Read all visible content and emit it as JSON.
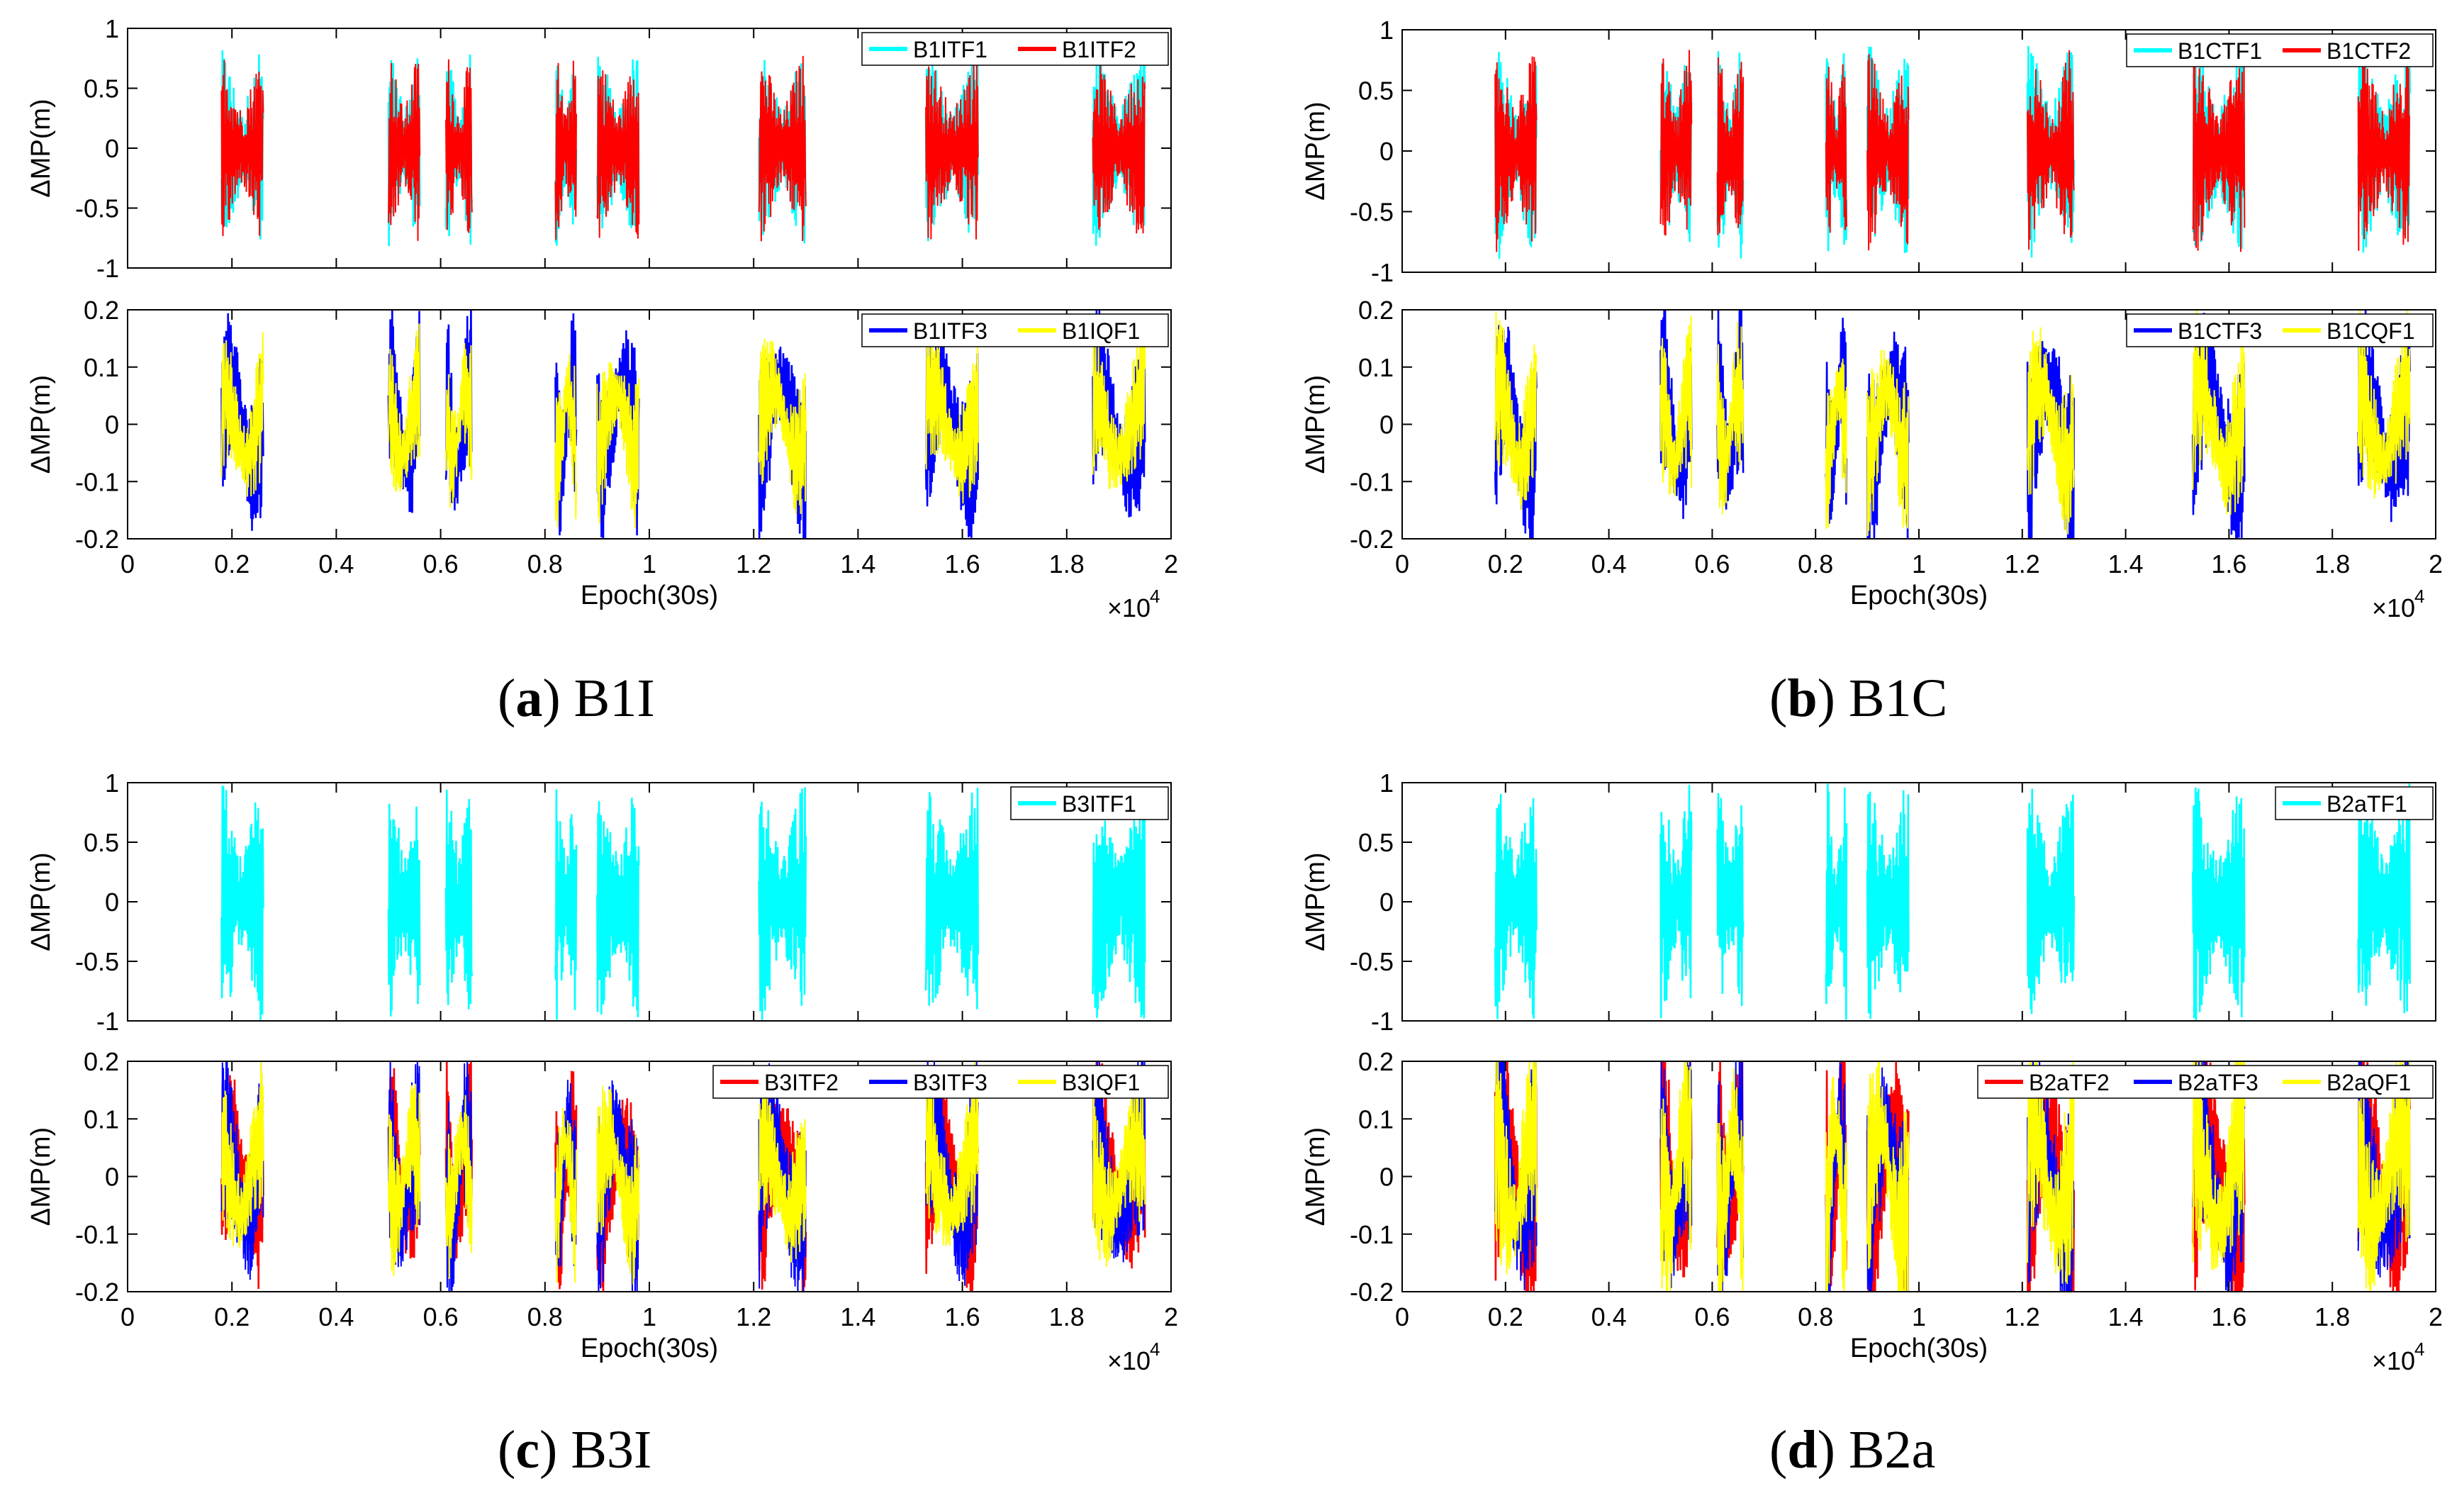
{
  "figure": {
    "colors": {
      "cyan": "#00ffff",
      "red": "#ff0000",
      "blue": "#0000ff",
      "yellow": "#ffff00",
      "axis": "#000000"
    },
    "passes": [
      [
        1800,
        2600
      ],
      [
        5000,
        5600
      ],
      [
        6100,
        6600
      ],
      [
        8200,
        8600
      ],
      [
        9000,
        9800
      ],
      [
        12100,
        13000
      ],
      [
        15300,
        16300
      ],
      [
        18500,
        19500
      ]
    ]
  },
  "chart_data": [
    {
      "type": "line",
      "panel": "a",
      "caption_letter": "a",
      "caption_text": "B1I",
      "subplots": [
        {
          "position": "top",
          "ylabel": "ΔMP(m)",
          "ylim": [
            -1,
            1
          ],
          "yticks": [
            "1",
            "0.5",
            "0",
            "-0.5",
            "-1"
          ],
          "legend": "top-right",
          "series": [
            {
              "name": "B1ITF1",
              "color": "#00ffff",
              "amp": 0.82
            },
            {
              "name": "B1ITF2",
              "color": "#ff0000",
              "amp": 0.8
            }
          ]
        },
        {
          "position": "bottom",
          "ylabel": "ΔMP(m)",
          "ylim": [
            -0.2,
            0.2
          ],
          "yticks": [
            "0.2",
            "0.1",
            "0",
            "-0.1",
            "-0.2"
          ],
          "legend": "top-right",
          "series": [
            {
              "name": "B1ITF3",
              "color": "#0000ff",
              "amp": 0.16
            },
            {
              "name": "B1IQF1",
              "color": "#ffff00",
              "amp": 0.13
            }
          ]
        }
      ],
      "xlim": [
        0,
        20000
      ],
      "xticks": [
        "0",
        "0.2",
        "0.4",
        "0.6",
        "0.8",
        "1",
        "1.2",
        "1.4",
        "1.6",
        "1.8",
        "2"
      ],
      "xlabel": "Epoch(30s)",
      "xscale_label": "×10",
      "xscale_exp": "4"
    },
    {
      "type": "line",
      "panel": "b",
      "caption_letter": "b",
      "caption_text": "B1C",
      "subplots": [
        {
          "position": "top",
          "ylabel": "ΔMP(m)",
          "ylim": [
            -1,
            1
          ],
          "yticks": [
            "1",
            "0.5",
            "0",
            "-0.5",
            "-1"
          ],
          "legend": "top-right",
          "series": [
            {
              "name": "B1CTF1",
              "color": "#00ffff",
              "amp": 0.9
            },
            {
              "name": "B1CTF2",
              "color": "#ff0000",
              "amp": 0.85
            }
          ]
        },
        {
          "position": "bottom",
          "ylabel": "ΔMP(m)",
          "ylim": [
            -0.2,
            0.2
          ],
          "yticks": [
            "0.2",
            "0.1",
            "0",
            "-0.1",
            "-0.2"
          ],
          "legend": "top-right",
          "series": [
            {
              "name": "B1CTF3",
              "color": "#0000ff",
              "amp": 0.17
            },
            {
              "name": "B1CQF1",
              "color": "#ffff00",
              "amp": 0.15
            }
          ]
        }
      ],
      "xlim": [
        0,
        20000
      ],
      "xticks": [
        "0",
        "0.2",
        "0.4",
        "0.6",
        "0.8",
        "1",
        "1.2",
        "1.4",
        "1.6",
        "1.8",
        "2"
      ],
      "xlabel": "Epoch(30s)",
      "xscale_label": "×10",
      "xscale_exp": "4"
    },
    {
      "type": "line",
      "panel": "c",
      "caption_letter": "c",
      "caption_text": "B3I",
      "subplots": [
        {
          "position": "top",
          "ylabel": "ΔMP(m)",
          "ylim": [
            -1,
            1
          ],
          "yticks": [
            "1",
            "0.5",
            "0",
            "-0.5",
            "-1"
          ],
          "legend": "top-right",
          "series": [
            {
              "name": "B3ITF1",
              "color": "#00ffff",
              "amp": 1.0
            }
          ]
        },
        {
          "position": "bottom",
          "ylabel": "ΔMP(m)",
          "ylim": [
            -0.2,
            0.2
          ],
          "yticks": [
            "0.2",
            "0.1",
            "0",
            "-0.1",
            "-0.2"
          ],
          "legend": "top-right",
          "series": [
            {
              "name": "B3ITF2",
              "color": "#ff0000",
              "amp": 0.16
            },
            {
              "name": "B3ITF3",
              "color": "#0000ff",
              "amp": 0.18
            },
            {
              "name": "B3IQF1",
              "color": "#ffff00",
              "amp": 0.14
            }
          ]
        }
      ],
      "xlim": [
        0,
        20000
      ],
      "xticks": [
        "0",
        "0.2",
        "0.4",
        "0.6",
        "0.8",
        "1",
        "1.2",
        "1.4",
        "1.6",
        "1.8",
        "2"
      ],
      "xlabel": "Epoch(30s)",
      "xscale_label": "×10",
      "xscale_exp": "4"
    },
    {
      "type": "line",
      "panel": "d",
      "caption_letter": "d",
      "caption_text": "B2a",
      "subplots": [
        {
          "position": "top",
          "ylabel": "ΔMP(m)",
          "ylim": [
            -1,
            1
          ],
          "yticks": [
            "1",
            "0.5",
            "0",
            "-0.5",
            "-1"
          ],
          "legend": "top-right",
          "series": [
            {
              "name": "B2aTF1",
              "color": "#00ffff",
              "amp": 1.0
            }
          ]
        },
        {
          "position": "bottom",
          "ylabel": "ΔMP(m)",
          "ylim": [
            -0.2,
            0.2
          ],
          "yticks": [
            "0.2",
            "0.1",
            "0",
            "-0.1",
            "-0.2"
          ],
          "legend": "top-right",
          "series": [
            {
              "name": "B2aTF2",
              "color": "#ff0000",
              "amp": 0.2
            },
            {
              "name": "B2aTF3",
              "color": "#0000ff",
              "amp": 0.2
            },
            {
              "name": "B2aQF1",
              "color": "#ffff00",
              "amp": 0.19
            }
          ]
        }
      ],
      "xlim": [
        0,
        20000
      ],
      "xticks": [
        "0",
        "0.2",
        "0.4",
        "0.6",
        "0.8",
        "1",
        "1.2",
        "1.4",
        "1.6",
        "1.8",
        "2"
      ],
      "xlabel": "Epoch(30s)",
      "xscale_label": "×10",
      "xscale_exp": "4"
    }
  ]
}
